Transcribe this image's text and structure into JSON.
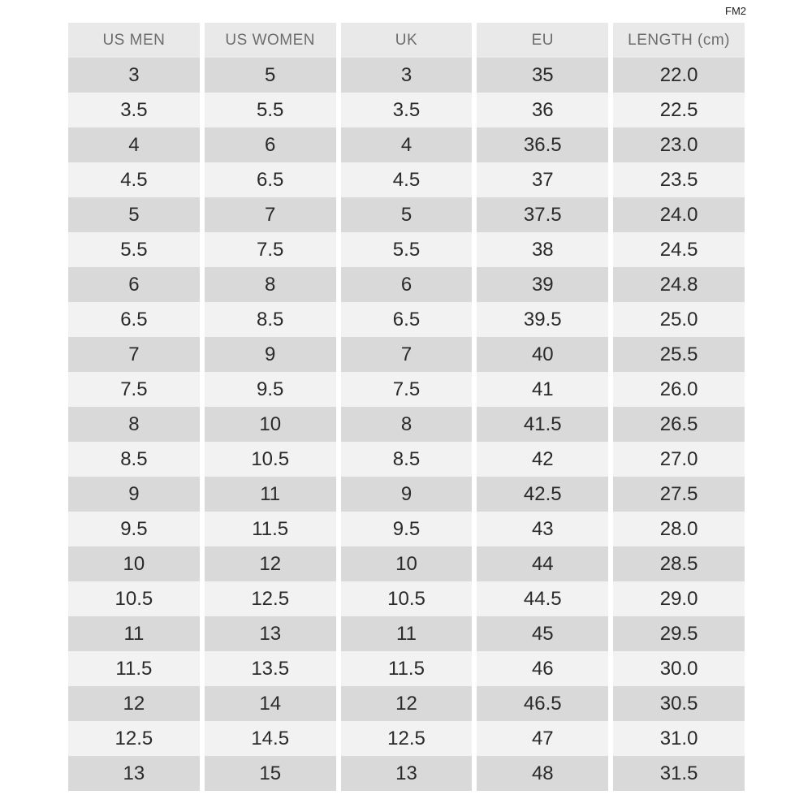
{
  "page_label": "FM2",
  "chart_data": {
    "type": "table",
    "columns": [
      "US MEN",
      "US WOMEN",
      "UK",
      "EU",
      "LENGTH (cm)"
    ],
    "rows": [
      [
        "3",
        "5",
        "3",
        "35",
        "22.0"
      ],
      [
        "3.5",
        "5.5",
        "3.5",
        "36",
        "22.5"
      ],
      [
        "4",
        "6",
        "4",
        "36.5",
        "23.0"
      ],
      [
        "4.5",
        "6.5",
        "4.5",
        "37",
        "23.5"
      ],
      [
        "5",
        "7",
        "5",
        "37.5",
        "24.0"
      ],
      [
        "5.5",
        "7.5",
        "5.5",
        "38",
        "24.5"
      ],
      [
        "6",
        "8",
        "6",
        "39",
        "24.8"
      ],
      [
        "6.5",
        "8.5",
        "6.5",
        "39.5",
        "25.0"
      ],
      [
        "7",
        "9",
        "7",
        "40",
        "25.5"
      ],
      [
        "7.5",
        "9.5",
        "7.5",
        "41",
        "26.0"
      ],
      [
        "8",
        "10",
        "8",
        "41.5",
        "26.5"
      ],
      [
        "8.5",
        "10.5",
        "8.5",
        "42",
        "27.0"
      ],
      [
        "9",
        "11",
        "9",
        "42.5",
        "27.5"
      ],
      [
        "9.5",
        "11.5",
        "9.5",
        "43",
        "28.0"
      ],
      [
        "10",
        "12",
        "10",
        "44",
        "28.5"
      ],
      [
        "10.5",
        "12.5",
        "10.5",
        "44.5",
        "29.0"
      ],
      [
        "11",
        "13",
        "11",
        "45",
        "29.5"
      ],
      [
        "11.5",
        "13.5",
        "11.5",
        "46",
        "30.0"
      ],
      [
        "12",
        "14",
        "12",
        "46.5",
        "30.5"
      ],
      [
        "12.5",
        "14.5",
        "12.5",
        "47",
        "31.0"
      ],
      [
        "13",
        "15",
        "13",
        "48",
        "31.5"
      ]
    ]
  },
  "colors": {
    "page_bg": "#ffffff",
    "header_bg": "#e9e9e9",
    "row_dark": "#d9d9d9",
    "row_light": "#f2f2f2",
    "header_text": "#6d6d6d",
    "cell_text": "#2a2a2a"
  }
}
